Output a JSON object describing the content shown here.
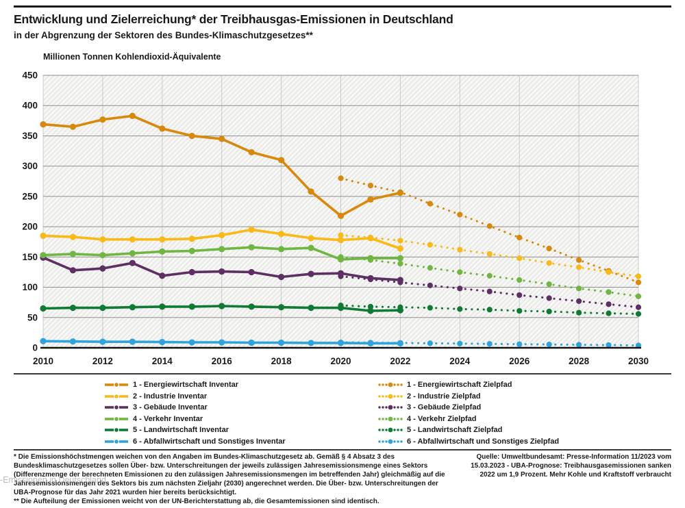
{
  "header": {
    "title": "Entwicklung und Zielerreichung* der Treibhausgas-Emissionen in Deutschland",
    "subtitle": "in der Abgrenzung der Sektoren des Bundes-Klimaschutzgesetzes**"
  },
  "watermark_text": "-Emissionen in Deutschland",
  "footnotes": {
    "note1": "* Die Emissionshöchstmengen weichen von den Angaben im Bundes-Klimaschutzgesetz ab. Gemäß § 4 Absatz 3 des Bundesklimaschutzgesetzes sollen Über- bzw. Unterschreitungen der jeweils zulässigen Jahresemissionsmenge eines Sektors (Differenzmenge der berechneten Emissionen zu den zulässigen Jahresemissionsmengen im betreffenden Jahr) gleichmäßig auf die Jahresemissionsmengen des Sektors bis zum nächsten Zieljahr (2030) angerechnet werden. Die Über- bzw. Unterschreitungen der UBA-Prognose für das Jahr 2021 wurden hier bereits berücksichtigt.",
    "note2": "** Die Aufteilung der Emissionen weicht von der UN-Berichterstattung ab, die Gesamtemissionen sind identisch.",
    "source": "Quelle: Umweltbundesamt: Presse-Information 11/2023 vom 15.03.2023 - UBA-Prognose: Treibhausgasemissionen sanken 2022 um 1,9 Prozent. Mehr Kohle und Kraftstoff verbraucht"
  },
  "chart_data": {
    "type": "line",
    "title": "Entwicklung und Zielerreichung der Treibhausgas-Emissionen in Deutschland",
    "ylabel": "Millionen Tonnen Kohlendioxid-Äquivalente",
    "xlabel": "",
    "ylim": [
      0,
      450
    ],
    "y_tick_step": 50,
    "x_range": [
      2010,
      2030
    ],
    "x_ticks": [
      2010,
      2012,
      2014,
      2016,
      2018,
      2020,
      2022,
      2024,
      2026,
      2028,
      2030
    ],
    "grid": true,
    "legend_position": "bottom",
    "colors": {
      "energiewirtschaft": "#D8890B",
      "industrie": "#F9B916",
      "gebaeude": "#5E2F62",
      "verkehr": "#6FB643",
      "landwirtschaft": "#0E7A33",
      "abfall": "#2FA3DC"
    },
    "series": [
      {
        "id": "energiewirtschaft-inventar",
        "label": "1 - Energiewirtschaft Inventar",
        "style": "solid",
        "color": "#D8890B",
        "x_start": 2010,
        "values": [
          369,
          365,
          377,
          383,
          362,
          350,
          345,
          323,
          310,
          258,
          218,
          245,
          256
        ]
      },
      {
        "id": "industrie-inventar",
        "label": "2 - Industrie Inventar",
        "style": "solid",
        "color": "#F9B916",
        "x_start": 2010,
        "values": [
          185,
          183,
          179,
          179,
          179,
          180,
          186,
          195,
          188,
          181,
          178,
          181,
          164
        ]
      },
      {
        "id": "gebaeude-inventar",
        "label": "3 - Gebäude Inventar",
        "style": "solid",
        "color": "#5E2F62",
        "x_start": 2010,
        "values": [
          149,
          128,
          131,
          140,
          119,
          125,
          126,
          125,
          117,
          122,
          123,
          115,
          112
        ]
      },
      {
        "id": "verkehr-inventar",
        "label": "4 - Verkehr Inventar",
        "style": "solid",
        "color": "#6FB643",
        "x_start": 2010,
        "values": [
          153,
          155,
          153,
          156,
          159,
          160,
          163,
          166,
          163,
          165,
          146,
          148,
          148
        ]
      },
      {
        "id": "landwirtschaft-inventar",
        "label": "5 - Landwirtschaft Inventar",
        "style": "solid",
        "color": "#0E7A33",
        "x_start": 2010,
        "values": [
          65,
          66,
          66,
          67,
          68,
          68,
          69,
          68,
          67,
          66,
          66,
          61,
          62
        ]
      },
      {
        "id": "abfall-inventar",
        "label": "6 - Abfallwirtschaft und Sonstiges Inventar",
        "style": "solid",
        "color": "#2FA3DC",
        "x_start": 2010,
        "values": [
          11,
          10.5,
          10,
          10,
          9.5,
          9,
          9,
          8.5,
          8.5,
          8,
          8,
          7.5,
          7.5
        ]
      },
      {
        "id": "energiewirtschaft-zielpfad",
        "label": "1 - Energiewirtschaft Zielpfad",
        "style": "dotted",
        "color": "#D8890B",
        "x_start": 2020,
        "values": [
          280,
          268,
          257,
          238,
          220,
          201,
          182,
          164,
          145,
          127,
          108
        ]
      },
      {
        "id": "industrie-zielpfad",
        "label": "2 - Industrie Zielpfad",
        "style": "dotted",
        "color": "#F9B916",
        "x_start": 2020,
        "values": [
          186,
          182,
          177,
          170,
          162,
          155,
          148,
          140,
          133,
          125,
          118
        ]
      },
      {
        "id": "gebaeude-zielpfad",
        "label": "3 - Gebäude Zielpfad",
        "style": "dotted",
        "color": "#5E2F62",
        "x_start": 2020,
        "values": [
          118,
          113,
          108,
          103,
          98,
          93,
          87,
          82,
          77,
          72,
          67
        ]
      },
      {
        "id": "verkehr-zielpfad",
        "label": "4 - Verkehr Zielpfad",
        "style": "dotted",
        "color": "#6FB643",
        "x_start": 2020,
        "values": [
          150,
          145,
          139,
          132,
          125,
          119,
          112,
          105,
          98,
          92,
          85
        ]
      },
      {
        "id": "landwirtschaft-zielpfad",
        "label": "5 - Landwirtschaft Zielpfad",
        "style": "dotted",
        "color": "#0E7A33",
        "x_start": 2020,
        "values": [
          70,
          68,
          67,
          66,
          64,
          63,
          61,
          60,
          58,
          57,
          56
        ]
      },
      {
        "id": "abfall-zielpfad",
        "label": "6 - Abfallwirtschaft und Sonstiges Zielpfad",
        "style": "dotted",
        "color": "#2FA3DC",
        "x_start": 2020,
        "values": [
          9,
          8.5,
          8,
          7.5,
          7,
          6.5,
          6,
          5.5,
          5,
          4.5,
          4
        ]
      }
    ]
  }
}
